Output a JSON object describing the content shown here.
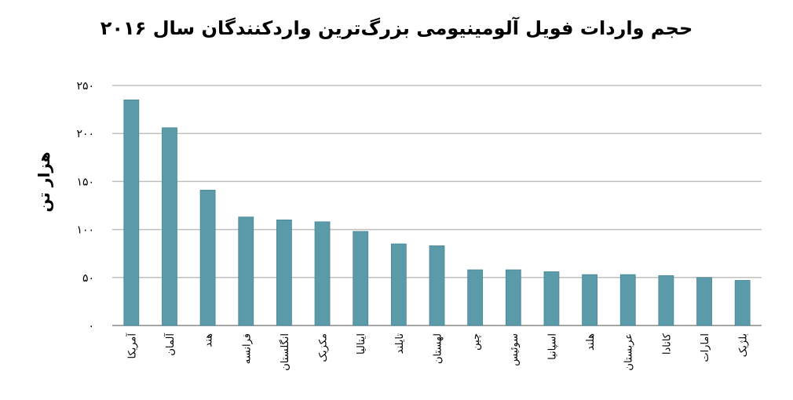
{
  "chart_data": {
    "type": "bar",
    "title": "حجم واردات فویل آلومینیومی بزرگ‌ترین واردکنندگان سال ۲۰۱۶",
    "ylabel": "هزار تن",
    "xlabel": "",
    "ylim": [
      0,
      250
    ],
    "yticks": [
      0,
      50,
      100,
      150,
      200,
      250
    ],
    "ytick_labels": [
      "۰",
      "۵۰",
      "۱۰۰",
      "۱۵۰",
      "۲۰۰",
      "۲۵۰"
    ],
    "grid": true,
    "categories": [
      "آمریکا",
      "آلمان",
      "هند",
      "فرانسه",
      "انگلستان",
      "مکزیک",
      "ایتالیا",
      "تایلند",
      "لهستان",
      "چین",
      "سوئیس",
      "اسپانیا",
      "هلند",
      "عربستان",
      "کانادا",
      "امارات",
      "بلژیک"
    ],
    "values": [
      235,
      206,
      141,
      113,
      110,
      108,
      98,
      85,
      83,
      58,
      58,
      56,
      53,
      53,
      52,
      50,
      47
    ]
  },
  "colors": {
    "bar": "#5b9aa8",
    "bar_stroke": "#4a8796",
    "grid": "#bfbfbf",
    "axis": "#888888"
  }
}
